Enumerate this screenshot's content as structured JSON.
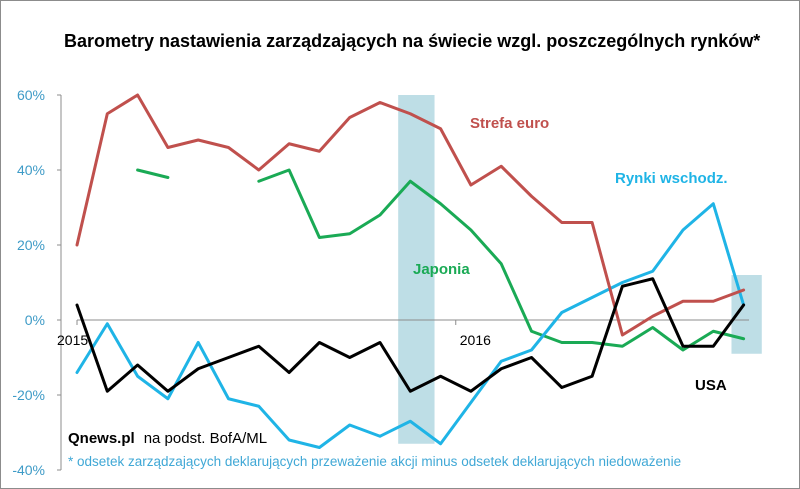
{
  "chart_data": {
    "type": "line",
    "title": "Barometry nastawienia zarządzających na świecie wzgl. poszczególnych rynków*",
    "ylabel": "",
    "xlabel": "",
    "ylim": [
      -40,
      60
    ],
    "y_ticks": [
      "60%",
      "40%",
      "20%",
      "0%",
      "-20%",
      "-40%"
    ],
    "y_tick_values": [
      60,
      40,
      20,
      0,
      -20,
      -40
    ],
    "x_ticks": [
      "2015",
      "2016"
    ],
    "x_tick_indices": [
      0,
      12.5
    ],
    "n_points": 23,
    "grid": false,
    "highlight_bands": [
      {
        "from": 10.6,
        "to": 11.8,
        "color": "#a8d3de"
      },
      {
        "from": 21.6,
        "to": 22.6,
        "color": "#a8d3de"
      }
    ],
    "series": [
      {
        "name": "Strefa euro",
        "color": "#c0504d",
        "values": [
          20,
          55,
          60,
          46,
          48,
          46,
          40,
          47,
          45,
          54,
          58,
          55,
          51,
          36,
          41,
          33,
          26,
          26,
          -4,
          1,
          5,
          5,
          8
        ]
      },
      {
        "name": "Japonia",
        "color": "#1aaa55",
        "values": [
          null,
          null,
          40,
          38,
          null,
          null,
          37,
          40,
          22,
          23,
          28,
          37,
          31,
          24,
          15,
          -3,
          -6,
          -6,
          -7,
          -2,
          -8,
          -3,
          -5
        ]
      },
      {
        "name": "Rynki wschodz.",
        "color": "#1fb4e6",
        "values": [
          -14,
          -1,
          -15,
          -21,
          -6,
          -21,
          -23,
          -32,
          -34,
          -28,
          -31,
          -27,
          -33,
          -22,
          -11,
          -8,
          2,
          6,
          10,
          13,
          24,
          31,
          4
        ]
      },
      {
        "name": "USA",
        "color": "#000000",
        "values": [
          4,
          -19,
          -12,
          -19,
          -13,
          -10,
          -7,
          -14,
          -6,
          -10,
          -6,
          -19,
          -15,
          -19,
          -13,
          -10,
          -18,
          -15,
          9,
          11,
          -7,
          -7,
          4
        ]
      }
    ],
    "source": "Qnews.pl",
    "source_suffix": "na podst. BofA/ML",
    "footnote": "* odsetek zarządzających deklarujących przeważenie akcji minus odsetek deklarujących niedoważenie"
  }
}
